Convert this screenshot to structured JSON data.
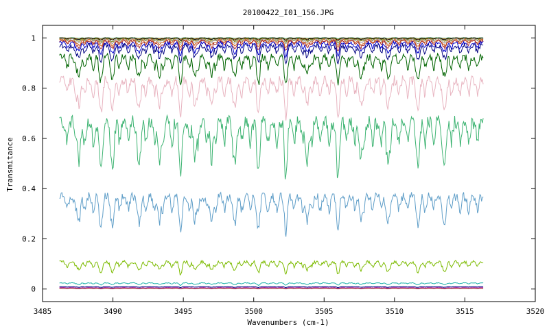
{
  "chart_data": {
    "type": "line",
    "title": "20100422_I01_156.JPG",
    "xlabel": "Wavenumbers (cm-1)",
    "ylabel": "Transmitance",
    "xlim": [
      3485,
      3520
    ],
    "ylim": [
      -0.05,
      1.05
    ],
    "xticks": [
      3485,
      3490,
      3495,
      3500,
      3505,
      3510,
      3515,
      3520
    ],
    "yticks": [
      0,
      0.2,
      0.4,
      0.6,
      0.8,
      1
    ],
    "ytick_labels": [
      "0",
      "0.2",
      "0.4",
      "0.6",
      "0.8",
      "1"
    ],
    "x_data_range": [
      3486.2,
      3516.3
    ],
    "grid": false,
    "legend": "none",
    "series": [
      {
        "color": "#e8e8e8",
        "base": 1.0,
        "amp": 0.002
      },
      {
        "color": "#3cb371",
        "base": 0.999,
        "amp": 0.004
      },
      {
        "color": "#d2691e",
        "base": 0.997,
        "amp": 0.006
      },
      {
        "color": "#000000",
        "base": 0.995,
        "amp": 0.01
      },
      {
        "color": "#808000",
        "base": 0.99,
        "amp": 0.015
      },
      {
        "color": "#a0a0a0",
        "base": 0.985,
        "amp": 0.022
      },
      {
        "color": "#d2691e",
        "base": 0.978,
        "amp": 0.03
      },
      {
        "color": "#a52a2a",
        "base": 0.97,
        "amp": 0.04
      },
      {
        "color": "#0000cd",
        "base": 0.955,
        "amp": 0.055
      },
      {
        "color": "#000080",
        "base": 0.935,
        "amp": 0.075
      },
      {
        "color": "#006400",
        "base": 0.87,
        "amp": 0.12
      },
      {
        "color": "#e8b4c0",
        "base": 0.76,
        "amp": 0.16
      },
      {
        "color": "#3cb371",
        "base": 0.56,
        "amp": 0.23
      },
      {
        "color": "#5f9ec8",
        "base": 0.3,
        "amp": 0.15
      },
      {
        "color": "#7cbb00",
        "base": 0.085,
        "amp": 0.05
      },
      {
        "color": "#20b2aa",
        "base": 0.02,
        "amp": 0.01
      },
      {
        "color": "#000080",
        "base": 0.008,
        "amp": 0.004
      },
      {
        "color": "#8b008b",
        "base": 0.004,
        "amp": 0.003
      },
      {
        "color": "#a52a2a",
        "base": 0.002,
        "amp": 0.002
      }
    ]
  }
}
